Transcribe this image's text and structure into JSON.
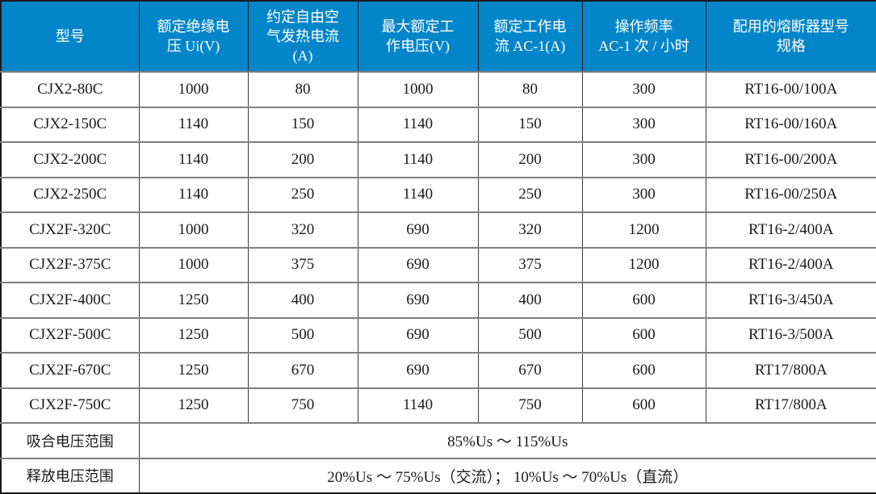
{
  "table": {
    "name": "contactor-specification-table",
    "header": [
      "型号",
      "额定绝缘电\n压 Ui(V)",
      "约定自由空\n气发热电流\n(A)",
      "最大额定工\n作电压(V)",
      "额定工作电\n流 AC-1(A)",
      "操作频率\nAC-1 次 / 小时",
      "配用的熔断器型号\n规格"
    ],
    "rows": [
      [
        "CJX2-80C",
        "1000",
        "80",
        "1000",
        "80",
        "300",
        "RT16-00/100A"
      ],
      [
        "CJX2-150C",
        "1140",
        "150",
        "1140",
        "150",
        "300",
        "RT16-00/160A"
      ],
      [
        "CJX2-200C",
        "1140",
        "200",
        "1140",
        "200",
        "300",
        "RT16-00/200A"
      ],
      [
        "CJX2-250C",
        "1140",
        "250",
        "1140",
        "250",
        "300",
        "RT16-00/250A"
      ],
      [
        "CJX2F-320C",
        "1000",
        "320",
        "690",
        "320",
        "1200",
        "RT16-2/400A"
      ],
      [
        "CJX2F-375C",
        "1000",
        "375",
        "690",
        "375",
        "1200",
        "RT16-2/400A"
      ],
      [
        "CJX2F-400C",
        "1250",
        "400",
        "690",
        "400",
        "600",
        "RT16-3/450A"
      ],
      [
        "CJX2F-500C",
        "1250",
        "500",
        "690",
        "500",
        "600",
        "RT16-3/500A"
      ],
      [
        "CJX2F-670C",
        "1250",
        "670",
        "690",
        "670",
        "600",
        "RT17/800A"
      ],
      [
        "CJX2F-750C",
        "1250",
        "750",
        "1140",
        "750",
        "600",
        "RT17/800A"
      ]
    ],
    "footer_rows": [
      {
        "label": "吸合电压范围",
        "value": "85%Us ～ 115%Us"
      },
      {
        "label": "释放电压范围",
        "value": "20%Us ～ 75%Us（交流）； 10%Us ～ 70%Us（直流）"
      }
    ]
  },
  "colors": {
    "header_bg": "#0386C9",
    "header_text": "#FFFFFF",
    "body_text": "#1A1A1A",
    "horizontal_grid": "#7F7F7F",
    "vertical_grid": "#3D3D3D",
    "outer_border": "#1A1A1A",
    "background": "#FFFFFF"
  }
}
